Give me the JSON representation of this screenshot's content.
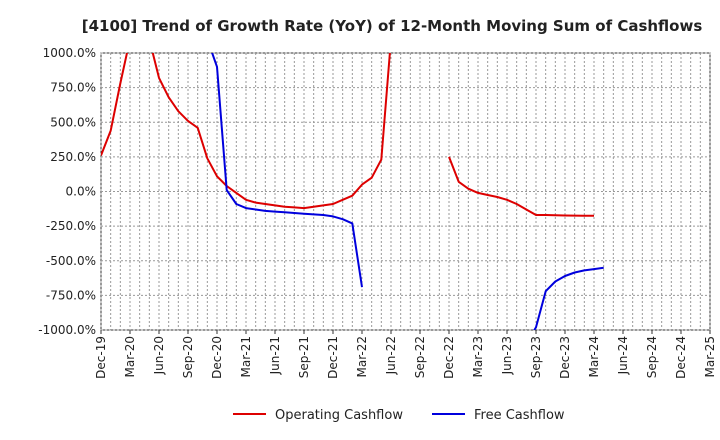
{
  "chart_data": {
    "type": "line",
    "title": "[4100]  Trend of Growth Rate (YoY) of 12-Month Moving Sum of Cashflows",
    "xlabel": "",
    "ylabel": "",
    "ylim": [
      -1000,
      1000
    ],
    "y_ticks": [
      1000,
      750,
      500,
      250,
      0,
      -250,
      -500,
      -750,
      -1000
    ],
    "y_tick_labels": [
      "1000.0%",
      "750.0%",
      "500.0%",
      "250.0%",
      "0.0%",
      "-250.0%",
      "-500.0%",
      "-750.0%",
      "-1000.0%"
    ],
    "x_ticks": [
      "Dec-19",
      "Mar-20",
      "Jun-20",
      "Sep-20",
      "Dec-20",
      "Mar-21",
      "Jun-21",
      "Sep-21",
      "Dec-21",
      "Mar-22",
      "Jun-22",
      "Sep-22",
      "Dec-22",
      "Mar-23",
      "Jun-23",
      "Sep-23",
      "Dec-23",
      "Mar-24",
      "Jun-24",
      "Sep-24",
      "Dec-24",
      "Mar-25"
    ],
    "grid": true,
    "legend_position": "bottom",
    "series": [
      {
        "name": "Operating Cashflow",
        "color": "#dd0000",
        "points": [
          [
            "Dec-19",
            260
          ],
          [
            "Jan-20",
            440
          ],
          [
            "Feb-20",
            780
          ],
          [
            "Mar-20",
            1100
          ],
          [
            "Apr-20",
            1100
          ],
          [
            "May-20",
            1100
          ],
          [
            "Jun-20",
            820
          ],
          [
            "Jul-20",
            680
          ],
          [
            "Aug-20",
            580
          ],
          [
            "Sep-20",
            510
          ],
          [
            "Oct-20",
            460
          ],
          [
            "Nov-20",
            240
          ],
          [
            "Dec-20",
            110
          ],
          [
            "Jan-21",
            40
          ],
          [
            "Feb-21",
            -10
          ],
          [
            "Mar-21",
            -60
          ],
          [
            "Apr-21",
            -80
          ],
          [
            "May-21",
            -90
          ],
          [
            "Jun-21",
            -100
          ],
          [
            "Jul-21",
            -110
          ],
          [
            "Aug-21",
            -115
          ],
          [
            "Sep-21",
            -120
          ],
          [
            "Oct-21",
            -110
          ],
          [
            "Nov-21",
            -100
          ],
          [
            "Dec-21",
            -90
          ],
          [
            "Jan-22",
            -60
          ],
          [
            "Feb-22",
            -30
          ],
          [
            "Mar-22",
            50
          ],
          [
            "Apr-22",
            100
          ],
          [
            "May-22",
            230
          ],
          [
            "Jun-22",
            1100
          ],
          null,
          [
            "Dec-22",
            250
          ],
          [
            "Jan-23",
            70
          ],
          [
            "Feb-23",
            20
          ],
          [
            "Mar-23",
            -10
          ],
          [
            "Apr-23",
            -25
          ],
          [
            "May-23",
            -40
          ],
          [
            "Jun-23",
            -60
          ],
          [
            "Jul-23",
            -90
          ],
          [
            "Aug-23",
            -130
          ],
          [
            "Sep-23",
            -170
          ],
          [
            "Oct-23",
            -170
          ],
          [
            "Nov-23",
            -172
          ],
          [
            "Dec-23",
            -173
          ],
          [
            "Jan-24",
            -174
          ],
          [
            "Feb-24",
            -175
          ],
          [
            "Mar-24",
            -175
          ]
        ]
      },
      {
        "name": "Free Cashflow",
        "color": "#0000dd",
        "points": [
          [
            "Nov-20",
            1100
          ],
          [
            "Dec-20",
            900
          ],
          [
            "Jan-21",
            10
          ],
          [
            "Feb-21",
            -90
          ],
          [
            "Mar-21",
            -120
          ],
          [
            "Apr-21",
            -130
          ],
          [
            "May-21",
            -140
          ],
          [
            "Jun-21",
            -145
          ],
          [
            "Jul-21",
            -150
          ],
          [
            "Aug-21",
            -155
          ],
          [
            "Sep-21",
            -160
          ],
          [
            "Oct-21",
            -165
          ],
          [
            "Nov-21",
            -170
          ],
          [
            "Dec-21",
            -180
          ],
          [
            "Jan-22",
            -200
          ],
          [
            "Feb-22",
            -230
          ],
          [
            "Mar-22",
            -690
          ],
          null,
          [
            "Aug-23",
            -1100
          ],
          [
            "Sep-23",
            -980
          ],
          [
            "Oct-23",
            -720
          ],
          [
            "Nov-23",
            -650
          ],
          [
            "Dec-23",
            -610
          ],
          [
            "Jan-24",
            -585
          ],
          [
            "Feb-24",
            -570
          ],
          [
            "Mar-24",
            -560
          ],
          [
            "Apr-24",
            -550
          ]
        ]
      }
    ]
  }
}
